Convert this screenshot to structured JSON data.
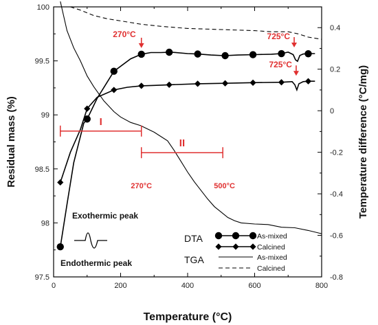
{
  "chart_data": {
    "type": "line",
    "xlabel": "Temperature (°C)",
    "ylabel_left": "Residual mass (%)",
    "ylabel_right": "Temperature difference (°C/mg)",
    "xlim": [
      0,
      800
    ],
    "ylim_left": [
      97.5,
      100
    ],
    "ylim_right": [
      -0.8,
      0.5
    ],
    "x_ticks": [
      "0",
      "200",
      "400",
      "600",
      "800"
    ],
    "y_left_ticks": [
      "97.5",
      "98",
      "98.5",
      "99",
      "99.5",
      "100"
    ],
    "y_right_ticks": [
      "-0.8",
      "-0.6",
      "-0.4",
      "-0.2",
      "0",
      "0.2",
      "0.4"
    ],
    "series": [
      {
        "name": "As-mixed",
        "group": "DTA",
        "axis": "right",
        "marker": "circle",
        "style": "solid",
        "color": "#000000",
        "points": [
          [
            20,
            -0.655
          ],
          [
            40,
            -0.45
          ],
          [
            60,
            -0.25
          ],
          [
            90,
            -0.06
          ],
          [
            100,
            -0.04
          ],
          [
            130,
            0.06
          ],
          [
            180,
            0.19
          ],
          [
            230,
            0.25
          ],
          [
            262,
            0.272
          ],
          [
            290,
            0.28
          ],
          [
            320,
            0.28
          ],
          [
            350,
            0.282
          ],
          [
            400,
            0.275
          ],
          [
            430,
            0.273
          ],
          [
            470,
            0.268
          ],
          [
            510,
            0.265
          ],
          [
            550,
            0.268
          ],
          [
            600,
            0.27
          ],
          [
            650,
            0.272
          ],
          [
            680,
            0.275
          ],
          [
            700,
            0.282
          ],
          [
            715,
            0.27
          ],
          [
            722,
            0.245
          ],
          [
            728,
            0.238
          ],
          [
            735,
            0.266
          ],
          [
            745,
            0.273
          ],
          [
            770,
            0.275
          ],
          [
            780,
            0.275
          ]
        ],
        "markers_at": [
          20,
          100,
          180,
          262,
          345,
          430,
          512,
          595,
          680,
          760
        ]
      },
      {
        "name": "Calcined",
        "group": "DTA",
        "axis": "right",
        "marker": "diamond",
        "style": "solid",
        "color": "#000000",
        "points": [
          [
            20,
            -0.345
          ],
          [
            50,
            -0.2
          ],
          [
            80,
            -0.09
          ],
          [
            100,
            0.01
          ],
          [
            130,
            0.065
          ],
          [
            180,
            0.1
          ],
          [
            220,
            0.113
          ],
          [
            262,
            0.12
          ],
          [
            300,
            0.122
          ],
          [
            345,
            0.125
          ],
          [
            430,
            0.13
          ],
          [
            512,
            0.132
          ],
          [
            595,
            0.135
          ],
          [
            680,
            0.137
          ],
          [
            712,
            0.14
          ],
          [
            720,
            0.125
          ],
          [
            726,
            0.1
          ],
          [
            732,
            0.13
          ],
          [
            745,
            0.14
          ],
          [
            760,
            0.142
          ],
          [
            780,
            0.142
          ]
        ],
        "markers_at": [
          20,
          100,
          180,
          262,
          345,
          430,
          512,
          595,
          680,
          760
        ]
      },
      {
        "name": "As-mixed",
        "group": "TGA",
        "axis": "left",
        "marker": "none",
        "style": "solid",
        "color": "#000000",
        "points": [
          [
            20,
            100.05
          ],
          [
            40,
            99.78
          ],
          [
            60,
            99.62
          ],
          [
            80,
            99.5
          ],
          [
            100,
            99.36
          ],
          [
            120,
            99.26
          ],
          [
            150,
            99.13
          ],
          [
            180,
            99.03
          ],
          [
            200,
            98.98
          ],
          [
            230,
            98.93
          ],
          [
            260,
            98.9
          ],
          [
            280,
            98.87
          ],
          [
            300,
            98.84
          ],
          [
            320,
            98.8
          ],
          [
            340,
            98.76
          ],
          [
            360,
            98.67
          ],
          [
            380,
            98.57
          ],
          [
            400,
            98.47
          ],
          [
            420,
            98.38
          ],
          [
            440,
            98.3
          ],
          [
            460,
            98.22
          ],
          [
            480,
            98.15
          ],
          [
            500,
            98.1
          ],
          [
            520,
            98.05
          ],
          [
            540,
            98.02
          ],
          [
            560,
            98.0
          ],
          [
            600,
            97.99
          ],
          [
            640,
            97.985
          ],
          [
            680,
            97.96
          ],
          [
            720,
            97.955
          ],
          [
            760,
            97.93
          ],
          [
            800,
            97.9
          ]
        ]
      },
      {
        "name": "Calcined",
        "group": "TGA",
        "axis": "left",
        "marker": "none",
        "style": "dashed",
        "color": "#000000",
        "points": [
          [
            50,
            100.0
          ],
          [
            80,
            99.97
          ],
          [
            120,
            99.92
          ],
          [
            160,
            99.89
          ],
          [
            200,
            99.87
          ],
          [
            260,
            99.84
          ],
          [
            320,
            99.82
          ],
          [
            400,
            99.8
          ],
          [
            500,
            99.79
          ],
          [
            600,
            99.78
          ],
          [
            650,
            99.77
          ],
          [
            700,
            99.77
          ],
          [
            730,
            99.75
          ],
          [
            760,
            99.72
          ],
          [
            800,
            99.7
          ]
        ]
      }
    ],
    "annotations": [
      {
        "text": "270°C",
        "x": 262,
        "y_right": 0.272,
        "arrow": true
      },
      {
        "text": "725°C",
        "x": 718,
        "y_right": 0.275,
        "arrow": true
      },
      {
        "text": "725°C",
        "x": 724,
        "y_right": 0.142,
        "arrow": true
      },
      {
        "text": "I",
        "x_range": [
          20,
          262
        ],
        "y_left": 98.85
      },
      {
        "text": "II",
        "x_range": [
          262,
          505
        ],
        "y_left": 98.65
      },
      {
        "text": "270°C",
        "x": 262,
        "y_left": 98.32
      },
      {
        "text": "500°C",
        "x": 510,
        "y_left": 98.32
      },
      {
        "text": "Exothermic peak"
      },
      {
        "text": "Endothermic peak"
      }
    ],
    "legend": {
      "placement": "bottom-right",
      "groups": [
        {
          "label": "DTA",
          "entries": [
            "As-mixed",
            "Calcined"
          ]
        },
        {
          "label": "TGA",
          "entries": [
            "As-mixed",
            "Calcined"
          ]
        }
      ]
    },
    "colors": {
      "annotation": "#e03030",
      "lines": "#000000"
    },
    "grid": false
  }
}
